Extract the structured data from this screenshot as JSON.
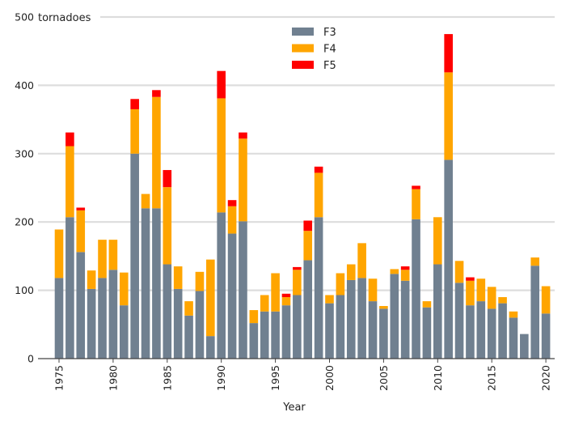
{
  "chart_data": {
    "type": "bar",
    "stacked": true,
    "xlabel": "Year",
    "ylabel": "tornadoes",
    "ylim": [
      0,
      500
    ],
    "yticks": [
      0,
      100,
      200,
      300,
      400,
      500
    ],
    "xticks": [
      1975,
      1980,
      1985,
      1990,
      1995,
      2000,
      2005,
      2010,
      2015,
      2020
    ],
    "grid": true,
    "legend_position": "top-center",
    "categories": [
      1975,
      1976,
      1977,
      1978,
      1979,
      1980,
      1981,
      1982,
      1983,
      1984,
      1985,
      1986,
      1987,
      1988,
      1989,
      1990,
      1991,
      1992,
      1993,
      1994,
      1995,
      1996,
      1997,
      1998,
      1999,
      2000,
      2001,
      2002,
      2003,
      2004,
      2005,
      2006,
      2007,
      2008,
      2009,
      2010,
      2011,
      2012,
      2013,
      2014,
      2015,
      2016,
      2017,
      2018,
      2019,
      2020
    ],
    "series": [
      {
        "name": "F3",
        "color": "#708090",
        "values": [
          118,
          207,
          156,
          102,
          118,
          130,
          78,
          300,
          220,
          220,
          138,
          102,
          63,
          99,
          33,
          214,
          183,
          201,
          52,
          69,
          69,
          78,
          93,
          144,
          207,
          81,
          93,
          115,
          118,
          84,
          73,
          124,
          114,
          204,
          75,
          138,
          291,
          111,
          78,
          84,
          73,
          81,
          60,
          36,
          136,
          66
        ]
      },
      {
        "name": "F4",
        "color": "#FFA500",
        "values": [
          71,
          104,
          61,
          27,
          56,
          44,
          48,
          65,
          21,
          163,
          113,
          33,
          21,
          28,
          112,
          167,
          40,
          121,
          19,
          24,
          56,
          12,
          37,
          43,
          65,
          12,
          32,
          23,
          51,
          33,
          4,
          7,
          16,
          44,
          9,
          69,
          128,
          32,
          36,
          33,
          32,
          9,
          9,
          0,
          12,
          40
        ]
      },
      {
        "name": "F5",
        "color": "#FF0000",
        "values": [
          0,
          20,
          4,
          0,
          0,
          0,
          0,
          15,
          0,
          10,
          25,
          0,
          0,
          0,
          0,
          40,
          9,
          9,
          0,
          0,
          0,
          5,
          4,
          15,
          9,
          0,
          0,
          0,
          0,
          0,
          0,
          0,
          5,
          5,
          0,
          0,
          56,
          0,
          5,
          0,
          0,
          0,
          0,
          0,
          0,
          0
        ]
      }
    ]
  }
}
